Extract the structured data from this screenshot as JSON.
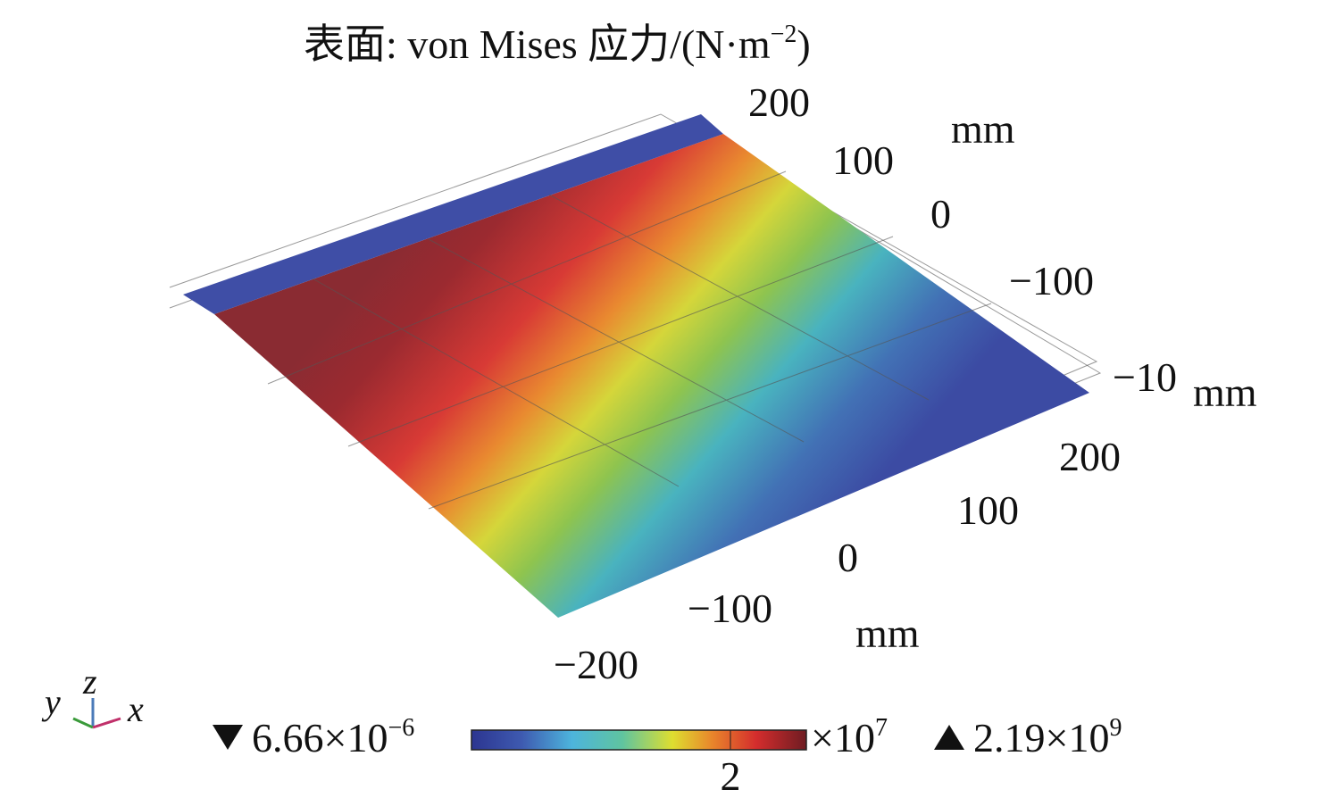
{
  "title": {
    "main": "表面: von Mises 应力/(N·m",
    "sup": "−2",
    "end": ")"
  },
  "axes": {
    "y": {
      "ticks": [
        "200",
        "100",
        "0",
        "−100"
      ],
      "unit": "mm"
    },
    "z": {
      "ticks": [
        "−10"
      ],
      "unit": "mm"
    },
    "x": {
      "ticks": [
        "200",
        "100",
        "0",
        "−100",
        "−200"
      ],
      "unit": "mm"
    }
  },
  "triad": {
    "y": "y",
    "z": "z",
    "x": "x"
  },
  "colorbar": {
    "min": {
      "base": "6.66×10",
      "sup": "−6"
    },
    "max": {
      "base": "2.19×10",
      "sup": "9"
    },
    "scale": {
      "base": "×10",
      "sup": "7"
    },
    "tick": "2"
  }
}
